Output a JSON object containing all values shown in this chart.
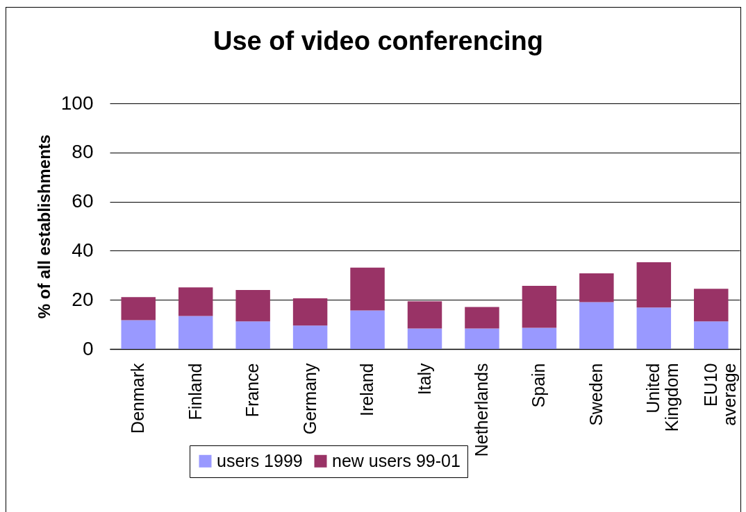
{
  "chart_data": {
    "type": "bar",
    "title": "Use of video conferencing",
    "ylabel": "% of all establishments",
    "categories": [
      "Denmark",
      "Finland",
      "France",
      "Germany",
      "Ireland",
      "Italy",
      "Netherlands",
      "Spain",
      "Sweden",
      "United Kingdom",
      "EU10 average"
    ],
    "stacked": true,
    "series": [
      {
        "name": "users 1999",
        "color": "#9999ff",
        "values": [
          11.7,
          13.4,
          11.2,
          9.5,
          15.7,
          8.3,
          8.3,
          8.6,
          19.1,
          16.9,
          11.2
        ]
      },
      {
        "name": "new users 99-01",
        "color": "#993366",
        "values": [
          9.4,
          11.7,
          12.8,
          11.1,
          17.4,
          11.1,
          8.8,
          17.1,
          11.7,
          18.4,
          13.3
        ]
      }
    ],
    "ylim": [
      0,
      100
    ],
    "yticks": [
      0,
      20,
      40,
      60,
      80,
      100
    ],
    "grid": "y",
    "legend": "bottom"
  }
}
